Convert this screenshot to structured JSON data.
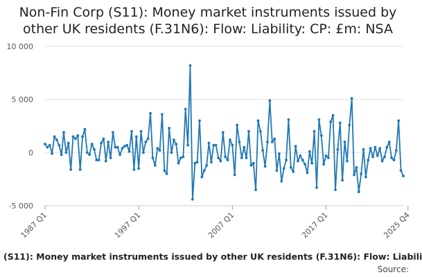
{
  "chart_data": {
    "type": "line",
    "title_lines": [
      "Non-Fin Corp (S11): Money market instruments issued by",
      "other UK residents (F.31N6): Flow: Liability: CP: £m: NSA"
    ],
    "xlabel": "",
    "ylabel": "",
    "ylim": [
      -5000,
      10000
    ],
    "y_ticks": [
      -5000,
      0,
      5000,
      10000
    ],
    "y_tick_labels": [
      "-5 000",
      "0",
      "5 000",
      "10 000"
    ],
    "x_tick_labels": [
      "1987 Q1",
      "1997 Q1",
      "2007 Q1",
      "2017 Q1",
      "2025 Q4"
    ],
    "x_tick_indices": [
      0,
      40,
      80,
      120,
      155
    ],
    "grid": true,
    "legend": "none",
    "line_color": "#1f77b4",
    "series": [
      {
        "x_start": "1987 Q1",
        "frequency": "quarterly",
        "values": [
          800,
          500,
          700,
          -100,
          1500,
          1200,
          700,
          -200,
          1900,
          0,
          900,
          -1600,
          1500,
          1300,
          1600,
          -1600,
          1500,
          2200,
          0,
          -200,
          800,
          300,
          -700,
          -700,
          900,
          1300,
          -800,
          1000,
          -500,
          1900,
          500,
          500,
          -200,
          400,
          600,
          700,
          100,
          2000,
          -1600,
          1500,
          -1500,
          2000,
          0,
          1000,
          1300,
          3700,
          -500,
          -1200,
          400,
          200,
          3600,
          -1700,
          -2000,
          2300,
          0,
          1200,
          800,
          -1000,
          -500,
          -400,
          4100,
          700,
          8200,
          -4400,
          -1000,
          -900,
          3000,
          -2300,
          -1700,
          -1200,
          900,
          -900,
          700,
          700,
          -500,
          -800,
          1900,
          -400,
          -700,
          1200,
          700,
          -2100,
          2600,
          1000,
          -500,
          500,
          -500,
          2000,
          -1200,
          -1000,
          -3500,
          3000,
          2000,
          200,
          -1300,
          1000,
          4900,
          1000,
          1300,
          -1700,
          -100,
          -2700,
          -1500,
          -700,
          3100,
          -1400,
          -1800,
          600,
          -800,
          -300,
          -700,
          -1100,
          -1900,
          100,
          -1000,
          2000,
          -3300,
          3100,
          1600,
          -1100,
          -300,
          -500,
          2900,
          3500,
          -3500,
          300,
          2800,
          -2600,
          1000,
          -800,
          2600,
          5100,
          -2100,
          -1400,
          -3700,
          -2000,
          300,
          -2300,
          -700,
          400,
          -400,
          500,
          -300,
          400,
          -800,
          -400,
          500,
          1000,
          -500,
          -700,
          200,
          3000,
          -1700,
          -2200
        ]
      }
    ]
  },
  "footer": {
    "series_label": "(S11): Money market instruments issued by other UK residents (F.31N6): Flow: Liabili",
    "source_label": "Source:"
  }
}
